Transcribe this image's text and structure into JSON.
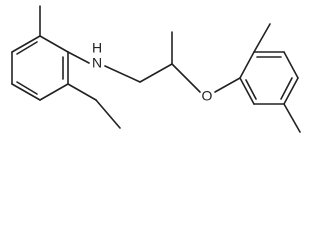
{
  "atoms": {
    "nitrogen": "N",
    "hydrogen": "H",
    "oxygen": "O"
  }
}
